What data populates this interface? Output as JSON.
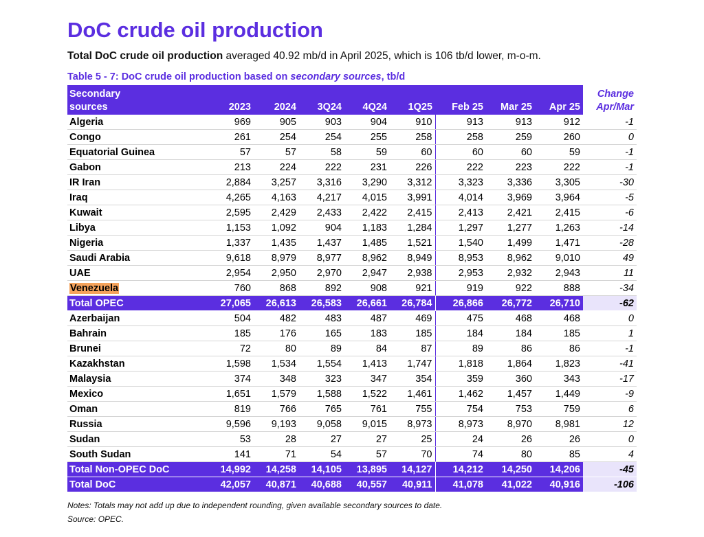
{
  "title": "DoC crude oil production",
  "subtitle": {
    "bold": "Total DoC crude oil production",
    "rest": " averaged 40.92 mb/d in April 2025, which is 106 tb/d lower, m-o-m."
  },
  "caption": {
    "prefix": "Table 5 - 7: DoC crude oil production based on ",
    "italic": "secondary sources",
    "suffix": ", tb/d"
  },
  "headers": {
    "source_line1": "Secondary",
    "source_line2": "sources",
    "periods": [
      "2023",
      "2024",
      "3Q24",
      "4Q24",
      "1Q25",
      "Feb 25",
      "Mar 25",
      "Apr 25"
    ],
    "change_line1": "Change",
    "change_line2": "Apr/Mar"
  },
  "rows": [
    {
      "name": "Algeria",
      "values": [
        "969",
        "905",
        "903",
        "904",
        "910",
        "913",
        "913",
        "912"
      ],
      "change": "-1"
    },
    {
      "name": "Congo",
      "values": [
        "261",
        "254",
        "254",
        "255",
        "258",
        "258",
        "259",
        "260"
      ],
      "change": "0"
    },
    {
      "name": "Equatorial Guinea",
      "values": [
        "57",
        "57",
        "58",
        "59",
        "60",
        "60",
        "60",
        "59"
      ],
      "change": "-1"
    },
    {
      "name": "Gabon",
      "values": [
        "213",
        "224",
        "222",
        "231",
        "226",
        "222",
        "223",
        "222"
      ],
      "change": "-1"
    },
    {
      "name": "IR Iran",
      "values": [
        "2,884",
        "3,257",
        "3,316",
        "3,290",
        "3,312",
        "3,323",
        "3,336",
        "3,305"
      ],
      "change": "-30"
    },
    {
      "name": "Iraq",
      "values": [
        "4,265",
        "4,163",
        "4,217",
        "4,015",
        "3,991",
        "4,014",
        "3,969",
        "3,964"
      ],
      "change": "-5"
    },
    {
      "name": "Kuwait",
      "values": [
        "2,595",
        "2,429",
        "2,433",
        "2,422",
        "2,415",
        "2,413",
        "2,421",
        "2,415"
      ],
      "change": "-6"
    },
    {
      "name": "Libya",
      "values": [
        "1,153",
        "1,092",
        "904",
        "1,183",
        "1,284",
        "1,297",
        "1,277",
        "1,263"
      ],
      "change": "-14"
    },
    {
      "name": "Nigeria",
      "values": [
        "1,337",
        "1,435",
        "1,437",
        "1,485",
        "1,521",
        "1,540",
        "1,499",
        "1,471"
      ],
      "change": "-28"
    },
    {
      "name": "Saudi Arabia",
      "values": [
        "9,618",
        "8,979",
        "8,977",
        "8,962",
        "8,949",
        "8,953",
        "8,962",
        "9,010"
      ],
      "change": "49"
    },
    {
      "name": "UAE",
      "values": [
        "2,954",
        "2,950",
        "2,970",
        "2,947",
        "2,938",
        "2,953",
        "2,932",
        "2,943"
      ],
      "change": "11"
    },
    {
      "name": "Venezuela",
      "values": [
        "760",
        "868",
        "892",
        "908",
        "921",
        "919",
        "922",
        "888"
      ],
      "change": "-34",
      "highlight": true
    },
    {
      "name": "Total  OPEC",
      "values": [
        "27,065",
        "26,613",
        "26,583",
        "26,661",
        "26,784",
        "26,866",
        "26,772",
        "26,710"
      ],
      "change": "-62",
      "total": true
    },
    {
      "name": "Azerbaijan",
      "values": [
        "504",
        "482",
        "483",
        "487",
        "469",
        "475",
        "468",
        "468"
      ],
      "change": "0"
    },
    {
      "name": "Bahrain",
      "values": [
        "185",
        "176",
        "165",
        "183",
        "185",
        "184",
        "184",
        "185"
      ],
      "change": "1"
    },
    {
      "name": "Brunei",
      "values": [
        "72",
        "80",
        "89",
        "84",
        "87",
        "89",
        "86",
        "86"
      ],
      "change": "-1"
    },
    {
      "name": "Kazakhstan",
      "values": [
        "1,598",
        "1,534",
        "1,554",
        "1,413",
        "1,747",
        "1,818",
        "1,864",
        "1,823"
      ],
      "change": "-41"
    },
    {
      "name": "Malaysia",
      "values": [
        "374",
        "348",
        "323",
        "347",
        "354",
        "359",
        "360",
        "343"
      ],
      "change": "-17"
    },
    {
      "name": "Mexico",
      "values": [
        "1,651",
        "1,579",
        "1,588",
        "1,522",
        "1,461",
        "1,462",
        "1,457",
        "1,449"
      ],
      "change": "-9"
    },
    {
      "name": "Oman",
      "values": [
        "819",
        "766",
        "765",
        "761",
        "755",
        "754",
        "753",
        "759"
      ],
      "change": "6"
    },
    {
      "name": "Russia",
      "values": [
        "9,596",
        "9,193",
        "9,058",
        "9,015",
        "8,973",
        "8,973",
        "8,970",
        "8,981"
      ],
      "change": "12"
    },
    {
      "name": "Sudan",
      "values": [
        "53",
        "28",
        "27",
        "27",
        "25",
        "24",
        "26",
        "26"
      ],
      "change": "0"
    },
    {
      "name": "South Sudan",
      "values": [
        "141",
        "71",
        "54",
        "57",
        "70",
        "74",
        "80",
        "85"
      ],
      "change": "4"
    },
    {
      "name": "Total Non-OPEC DoC",
      "values": [
        "14,992",
        "14,258",
        "14,105",
        "13,895",
        "14,127",
        "14,212",
        "14,250",
        "14,206"
      ],
      "change": "-45",
      "total": true
    },
    {
      "name": "Total DoC",
      "values": [
        "42,057",
        "40,871",
        "40,688",
        "40,557",
        "40,911",
        "41,078",
        "41,022",
        "40,916"
      ],
      "change": "-106",
      "total": true
    }
  ],
  "notes": "Notes: Totals may not add up due to independent rounding, given available secondary sources to date.",
  "source": "Source: OPEC.",
  "colors": {
    "accent": "#5b2ee0",
    "highlight": "#f5a35c",
    "change_total_bg": "#e9e4fb"
  }
}
